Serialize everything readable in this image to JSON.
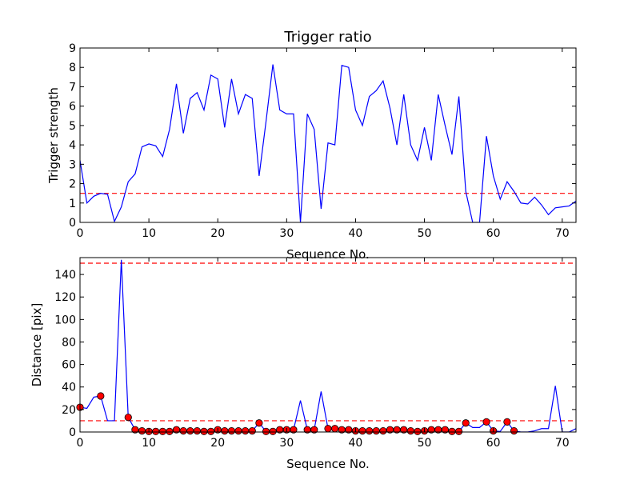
{
  "chart_data": [
    {
      "type": "line",
      "title": "Trigger ratio",
      "xlabel": "Sequence No.",
      "ylabel": "Trigger strength",
      "xlim": [
        0,
        72
      ],
      "ylim": [
        0,
        9
      ],
      "xticks": [
        0,
        10,
        20,
        30,
        40,
        50,
        60,
        70
      ],
      "yticks": [
        0,
        1,
        2,
        3,
        4,
        5,
        6,
        7,
        8,
        9
      ],
      "grid": false,
      "line_color": "#0000ff",
      "threshold": {
        "value": 1.5,
        "color": "#ff0000",
        "style": "dashed"
      },
      "series": [
        {
          "x": [
            0,
            1,
            2,
            3,
            4,
            5,
            6,
            7,
            8,
            9,
            10,
            11,
            12,
            13,
            14,
            15,
            16,
            17,
            18,
            19,
            20,
            21,
            22,
            23,
            24,
            25,
            26,
            27,
            28,
            29,
            30,
            31,
            32,
            33,
            34,
            35,
            36,
            37,
            38,
            39,
            40,
            41,
            42,
            43,
            44,
            45,
            46,
            47,
            48,
            49,
            50,
            51,
            52,
            53,
            54,
            55,
            56,
            57,
            58,
            59,
            60,
            61,
            62,
            63,
            64,
            65,
            66,
            67,
            68,
            69,
            70,
            71,
            72
          ],
          "y": [
            3.2,
            1.0,
            1.35,
            1.5,
            1.45,
            0.05,
            0.8,
            2.1,
            2.5,
            3.9,
            4.05,
            3.95,
            3.4,
            4.8,
            7.15,
            4.6,
            6.4,
            6.7,
            5.8,
            7.6,
            7.4,
            4.9,
            7.4,
            5.6,
            6.6,
            6.4,
            2.4,
            5.2,
            8.15,
            5.8,
            5.6,
            5.6,
            0.0,
            5.6,
            4.8,
            0.7,
            4.1,
            4.0,
            8.1,
            8.0,
            5.8,
            5.0,
            6.5,
            6.8,
            7.3,
            5.9,
            4.0,
            6.6,
            4.0,
            3.2,
            4.9,
            3.2,
            6.6,
            5.0,
            3.5,
            6.5,
            1.6,
            0.0,
            0.0,
            4.45,
            2.4,
            1.2,
            2.1,
            1.6,
            1.0,
            0.95,
            1.3,
            0.9,
            0.4,
            0.75,
            0.8,
            0.85,
            1.1
          ]
        }
      ]
    },
    {
      "type": "line",
      "title": "",
      "xlabel": "Sequence No.",
      "ylabel": "Distance [pix]",
      "xlim": [
        0,
        72
      ],
      "ylim": [
        0,
        155
      ],
      "xticks": [
        0,
        10,
        20,
        30,
        40,
        50,
        60,
        70
      ],
      "yticks": [
        0,
        20,
        40,
        60,
        80,
        100,
        120,
        140
      ],
      "grid": false,
      "line_color": "#0000ff",
      "marker_color": "#ff0000",
      "thresholds": [
        {
          "value": 150,
          "color": "#ff0000",
          "style": "dashed"
        },
        {
          "value": 10,
          "color": "#ff0000",
          "style": "dashed"
        }
      ],
      "series": [
        {
          "x": [
            0,
            1,
            2,
            3,
            4,
            5,
            6,
            7,
            8,
            9,
            10,
            11,
            12,
            13,
            14,
            15,
            16,
            17,
            18,
            19,
            20,
            21,
            22,
            23,
            24,
            25,
            26,
            27,
            28,
            29,
            30,
            31,
            32,
            33,
            34,
            35,
            36,
            37,
            38,
            39,
            40,
            41,
            42,
            43,
            44,
            45,
            46,
            47,
            48,
            49,
            50,
            51,
            52,
            53,
            54,
            55,
            56,
            57,
            58,
            59,
            60,
            61,
            62,
            63,
            64,
            65,
            66,
            67,
            68,
            69,
            70,
            71,
            72
          ],
          "y": [
            22,
            21,
            31,
            32,
            10,
            10,
            153,
            13,
            2,
            1,
            0.5,
            0.5,
            0.5,
            0.5,
            2,
            1,
            1,
            1,
            0.5,
            0.5,
            2,
            1,
            1,
            1,
            1,
            1,
            8,
            0.5,
            0.5,
            2,
            2,
            2,
            28,
            2,
            2,
            36,
            3,
            3,
            2,
            2,
            1,
            1,
            1,
            1,
            1,
            2,
            2,
            2,
            1,
            0.5,
            1,
            2,
            2,
            2,
            0.5,
            0.5,
            8,
            4,
            4,
            9,
            1,
            0.5,
            9,
            1,
            0,
            0,
            1,
            3,
            3,
            41,
            0,
            0,
            3
          ],
          "markers": [
            0,
            3,
            7,
            8,
            9,
            10,
            11,
            12,
            13,
            14,
            15,
            16,
            17,
            18,
            19,
            20,
            21,
            22,
            23,
            24,
            25,
            26,
            27,
            28,
            29,
            30,
            31,
            33,
            34,
            36,
            37,
            38,
            39,
            40,
            41,
            42,
            43,
            44,
            45,
            46,
            47,
            48,
            49,
            50,
            51,
            52,
            53,
            54,
            55,
            56,
            59,
            60,
            62,
            63
          ]
        }
      ]
    }
  ]
}
